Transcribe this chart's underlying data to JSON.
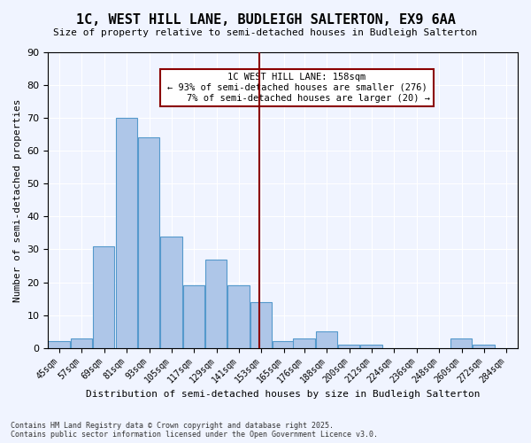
{
  "title": "1C, WEST HILL LANE, BUDLEIGH SALTERTON, EX9 6AA",
  "subtitle": "Size of property relative to semi-detached houses in Budleigh Salterton",
  "xlabel": "Distribution of semi-detached houses by size in Budleigh Salterton",
  "ylabel": "Number of semi-detached properties",
  "footnote": "Contains HM Land Registry data © Crown copyright and database right 2025.\nContains public sector information licensed under the Open Government Licence v3.0.",
  "bin_labels": [
    "45sqm",
    "57sqm",
    "69sqm",
    "81sqm",
    "93sqm",
    "105sqm",
    "117sqm",
    "129sqm",
    "141sqm",
    "153sqm",
    "165sqm",
    "176sqm",
    "188sqm",
    "200sqm",
    "212sqm",
    "224sqm",
    "236sqm",
    "248sqm",
    "260sqm",
    "272sqm",
    "284sqm"
  ],
  "bin_values": [
    2,
    3,
    31,
    70,
    64,
    34,
    19,
    27,
    19,
    14,
    2,
    3,
    5,
    1,
    1,
    0,
    0,
    0,
    3,
    1,
    0
  ],
  "property_value": 158,
  "property_label": "1C WEST HILL LANE: 158sqm",
  "pct_smaller": 93,
  "n_smaller": 276,
  "pct_larger": 7,
  "n_larger": 20,
  "bar_color": "#aec6e8",
  "bar_edge_color": "#5599cc",
  "vline_color": "#8b0000",
  "annotation_box_edge": "#8b0000",
  "background_color": "#f0f4ff",
  "ylim": [
    0,
    90
  ],
  "bin_width": 12,
  "bin_starts": [
    45,
    57,
    69,
    81,
    93,
    105,
    117,
    129,
    141,
    153,
    165,
    176,
    188,
    200,
    212,
    224,
    236,
    248,
    260,
    272,
    284
  ]
}
